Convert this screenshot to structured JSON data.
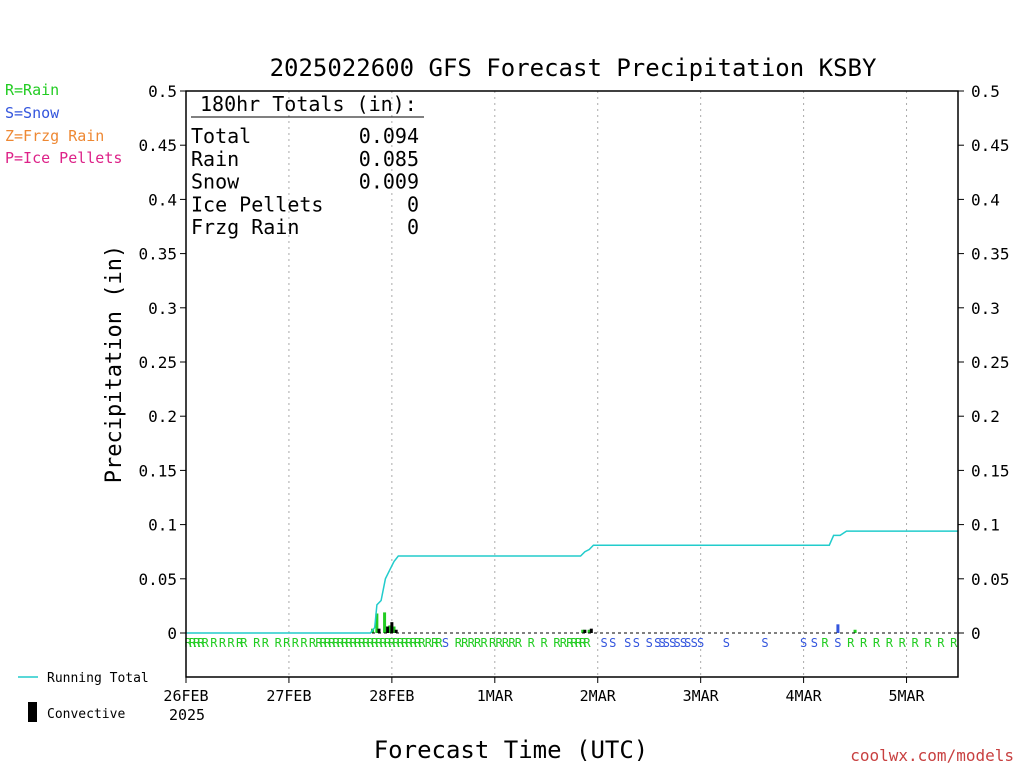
{
  "colors": {
    "rain": "#22cc22",
    "snow": "#3355dd",
    "frzg_rain": "#ee8833",
    "ice_pellets": "#dd2288",
    "running_total": "#22cccc",
    "convective": "#000000",
    "credit": "#c84040",
    "axis": "#000000",
    "grid": "#aaaaaa"
  },
  "type_legend": [
    {
      "text": "R=Rain",
      "color": "#22cc22"
    },
    {
      "text": "S=Snow",
      "color": "#3355dd"
    },
    {
      "text": "Z=Frzg Rain",
      "color": "#ee8833"
    },
    {
      "text": "P=Ice Pellets",
      "color": "#dd2288"
    }
  ],
  "series_legend": {
    "running_total": "Running Total",
    "convective": "Convective"
  },
  "credit": "coolwx.com/models",
  "chart_data": {
    "type": "bar",
    "title": "2025022600 GFS Forecast Precipitation KSBY",
    "xlabel": "Forecast Time (UTC)",
    "ylabel": "Precipitation (in)",
    "ylim": [
      0,
      0.5
    ],
    "yticks": [
      "0",
      "0.05",
      "0.1",
      "0.15",
      "0.2",
      "0.25",
      "0.3",
      "0.35",
      "0.4",
      "0.45",
      "0.5"
    ],
    "xlim_hours": [
      0,
      180
    ],
    "xticks": [
      {
        "h": 0,
        "label": "26FEB",
        "sub": "2025"
      },
      {
        "h": 24,
        "label": "27FEB"
      },
      {
        "h": 48,
        "label": "28FEB"
      },
      {
        "h": 72,
        "label": "1MAR"
      },
      {
        "h": 96,
        "label": "2MAR"
      },
      {
        "h": 120,
        "label": "3MAR"
      },
      {
        "h": 144,
        "label": "4MAR"
      },
      {
        "h": 168,
        "label": "5MAR"
      }
    ],
    "grid": "vertical dotted at each day",
    "totals_box": {
      "heading": "180hr Totals (in):",
      "rows": [
        {
          "label": "Total",
          "value": "0.094"
        },
        {
          "label": "Rain",
          "value": "0.085"
        },
        {
          "label": "Snow",
          "value": "0.009"
        },
        {
          "label": "Ice Pellets",
          "value": "0"
        },
        {
          "label": "Frzg Rain",
          "value": "0"
        }
      ]
    },
    "series": [
      {
        "name": "Running Total",
        "kind": "line",
        "points": [
          [
            0,
            0
          ],
          [
            43,
            0
          ],
          [
            44,
            0.005
          ],
          [
            44.5,
            0.026
          ],
          [
            45.5,
            0.03
          ],
          [
            46.5,
            0.05
          ],
          [
            47.5,
            0.058
          ],
          [
            48.5,
            0.066
          ],
          [
            49.5,
            0.071
          ],
          [
            92,
            0.071
          ],
          [
            93,
            0.075
          ],
          [
            94,
            0.077
          ],
          [
            95,
            0.081
          ],
          [
            150,
            0.081
          ],
          [
            151,
            0.09
          ],
          [
            152.5,
            0.09
          ],
          [
            154,
            0.094
          ],
          [
            180,
            0.094
          ]
        ]
      },
      {
        "name": "Rain",
        "kind": "bar",
        "bars": [
          [
            43.5,
            0.004
          ],
          [
            44.5,
            0.018
          ],
          [
            46.3,
            0.019
          ],
          [
            47.5,
            0.007
          ],
          [
            48.5,
            0.006
          ],
          [
            92.5,
            0.003
          ],
          [
            94,
            0.003
          ],
          [
            156,
            0.003
          ]
        ]
      },
      {
        "name": "Snow",
        "kind": "bar",
        "bars": [
          [
            152,
            0.008
          ]
        ]
      },
      {
        "name": "Convective",
        "kind": "bar",
        "bars": [
          [
            45,
            0.004
          ],
          [
            47,
            0.006
          ],
          [
            48,
            0.01
          ],
          [
            49,
            0.003
          ],
          [
            93,
            0.003
          ],
          [
            94.5,
            0.004
          ]
        ]
      }
    ],
    "ptype_markers": [
      {
        "h": 0.5,
        "t": "R"
      },
      {
        "h": 1.5,
        "t": "R"
      },
      {
        "h": 2.5,
        "t": "R"
      },
      {
        "h": 3.5,
        "t": "R"
      },
      {
        "h": 4.5,
        "t": "R"
      },
      {
        "h": 6.5,
        "t": "R"
      },
      {
        "h": 8.5,
        "t": "R"
      },
      {
        "h": 10.5,
        "t": "R"
      },
      {
        "h": 12.5,
        "t": "R"
      },
      {
        "h": 13.5,
        "t": "R"
      },
      {
        "h": 16.5,
        "t": "R"
      },
      {
        "h": 18.5,
        "t": "R"
      },
      {
        "h": 21.5,
        "t": "R"
      },
      {
        "h": 23.5,
        "t": "R"
      },
      {
        "h": 25.5,
        "t": "R"
      },
      {
        "h": 27.5,
        "t": "R"
      },
      {
        "h": 29.5,
        "t": "R"
      },
      {
        "h": 31,
        "t": "R"
      },
      {
        "h": 32,
        "t": "R"
      },
      {
        "h": 33,
        "t": "R"
      },
      {
        "h": 34,
        "t": "R"
      },
      {
        "h": 35,
        "t": "R"
      },
      {
        "h": 36,
        "t": "R"
      },
      {
        "h": 37,
        "t": "R"
      },
      {
        "h": 38,
        "t": "R"
      },
      {
        "h": 39,
        "t": "R"
      },
      {
        "h": 40,
        "t": "R"
      },
      {
        "h": 41,
        "t": "R"
      },
      {
        "h": 42,
        "t": "R"
      },
      {
        "h": 43,
        "t": "R"
      },
      {
        "h": 44,
        "t": "R"
      },
      {
        "h": 45,
        "t": "R"
      },
      {
        "h": 46,
        "t": "R"
      },
      {
        "h": 47,
        "t": "R"
      },
      {
        "h": 48,
        "t": "R"
      },
      {
        "h": 49,
        "t": "R"
      },
      {
        "h": 50,
        "t": "R"
      },
      {
        "h": 51,
        "t": "R"
      },
      {
        "h": 52,
        "t": "R"
      },
      {
        "h": 53,
        "t": "R"
      },
      {
        "h": 54,
        "t": "R"
      },
      {
        "h": 55,
        "t": "R"
      },
      {
        "h": 56.5,
        "t": "R"
      },
      {
        "h": 58,
        "t": "R"
      },
      {
        "h": 59,
        "t": "R"
      },
      {
        "h": 60.5,
        "t": "S"
      },
      {
        "h": 63.5,
        "t": "R"
      },
      {
        "h": 65,
        "t": "R"
      },
      {
        "h": 66.5,
        "t": "R"
      },
      {
        "h": 68,
        "t": "R"
      },
      {
        "h": 69.5,
        "t": "R"
      },
      {
        "h": 71.5,
        "t": "R"
      },
      {
        "h": 73,
        "t": "R"
      },
      {
        "h": 74.5,
        "t": "R"
      },
      {
        "h": 76,
        "t": "R"
      },
      {
        "h": 77.5,
        "t": "R"
      },
      {
        "h": 80.5,
        "t": "R"
      },
      {
        "h": 83.5,
        "t": "R"
      },
      {
        "h": 86.5,
        "t": "R"
      },
      {
        "h": 88,
        "t": "R"
      },
      {
        "h": 89.5,
        "t": "R"
      },
      {
        "h": 90.5,
        "t": "R"
      },
      {
        "h": 91.5,
        "t": "R"
      },
      {
        "h": 92.5,
        "t": "R"
      },
      {
        "h": 93.5,
        "t": "R"
      },
      {
        "h": 97.5,
        "t": "S"
      },
      {
        "h": 99.5,
        "t": "S"
      },
      {
        "h": 103,
        "t": "S"
      },
      {
        "h": 105,
        "t": "S"
      },
      {
        "h": 108,
        "t": "S"
      },
      {
        "h": 110,
        "t": "S"
      },
      {
        "h": 111,
        "t": "S"
      },
      {
        "h": 112,
        "t": "S"
      },
      {
        "h": 113.5,
        "t": "S"
      },
      {
        "h": 114.5,
        "t": "S"
      },
      {
        "h": 116,
        "t": "S"
      },
      {
        "h": 117,
        "t": "S"
      },
      {
        "h": 118.5,
        "t": "S"
      },
      {
        "h": 120,
        "t": "S"
      },
      {
        "h": 126,
        "t": "S"
      },
      {
        "h": 135,
        "t": "S"
      },
      {
        "h": 144,
        "t": "S"
      },
      {
        "h": 146.5,
        "t": "S"
      },
      {
        "h": 149,
        "t": "R"
      },
      {
        "h": 152,
        "t": "S"
      },
      {
        "h": 155,
        "t": "R"
      },
      {
        "h": 158,
        "t": "R"
      },
      {
        "h": 161,
        "t": "R"
      },
      {
        "h": 164,
        "t": "R"
      },
      {
        "h": 167,
        "t": "R"
      },
      {
        "h": 170,
        "t": "R"
      },
      {
        "h": 173,
        "t": "R"
      },
      {
        "h": 176,
        "t": "R"
      },
      {
        "h": 179,
        "t": "R"
      }
    ]
  }
}
